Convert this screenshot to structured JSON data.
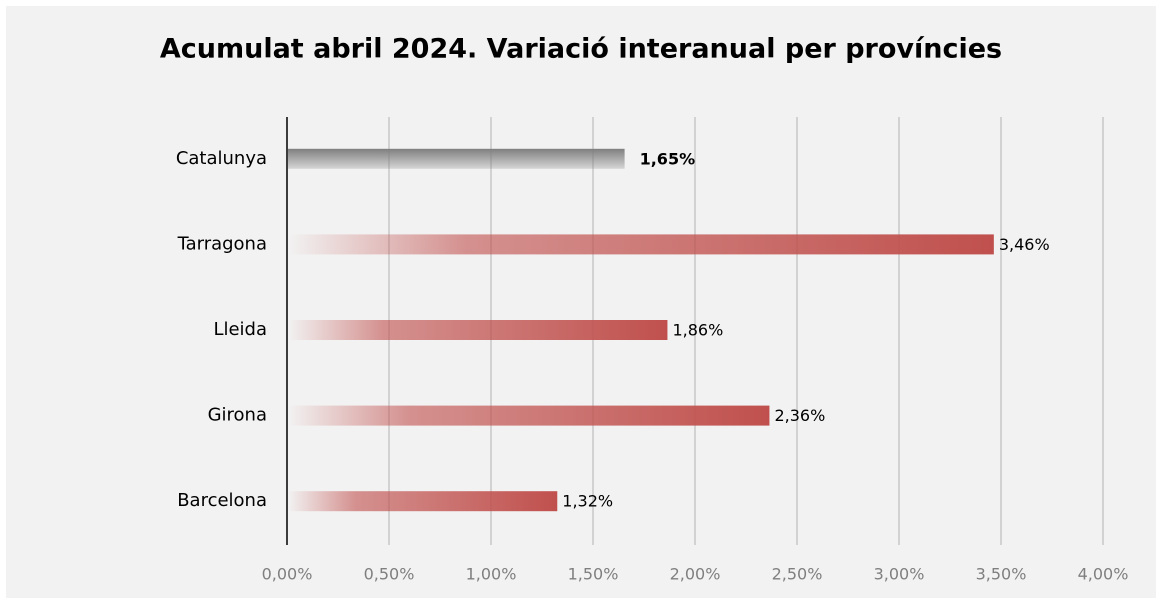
{
  "chart_data": {
    "type": "hbar",
    "title": "Acumulat abril 2024. Variació interanual per províncies",
    "categories": [
      "Catalunya",
      "Tarragona",
      "Lleida",
      "Girona",
      "Barcelona"
    ],
    "values": [
      1.65,
      3.46,
      1.86,
      2.36,
      1.32
    ],
    "value_labels": [
      "1,65%",
      "3,46%",
      "1,86%",
      "2,36%",
      "1,32%"
    ],
    "colors": [
      "#7f7f7f",
      "#c0504d",
      "#c0504d",
      "#c0504d",
      "#c0504d"
    ],
    "xlim": [
      0,
      4
    ],
    "xticks": [
      {
        "value": 0,
        "label": "0,00%"
      },
      {
        "value": 0.5,
        "label": "0,50%"
      },
      {
        "value": 1,
        "label": "1,00%"
      },
      {
        "value": 1.5,
        "label": "1,50%"
      },
      {
        "value": 2,
        "label": "2,00%"
      },
      {
        "value": 2.5,
        "label": "2,50%"
      },
      {
        "value": 3,
        "label": "3,00%"
      },
      {
        "value": 3.5,
        "label": "3,50%"
      },
      {
        "value": 4,
        "label": "4,00%"
      }
    ],
    "grid": true
  }
}
